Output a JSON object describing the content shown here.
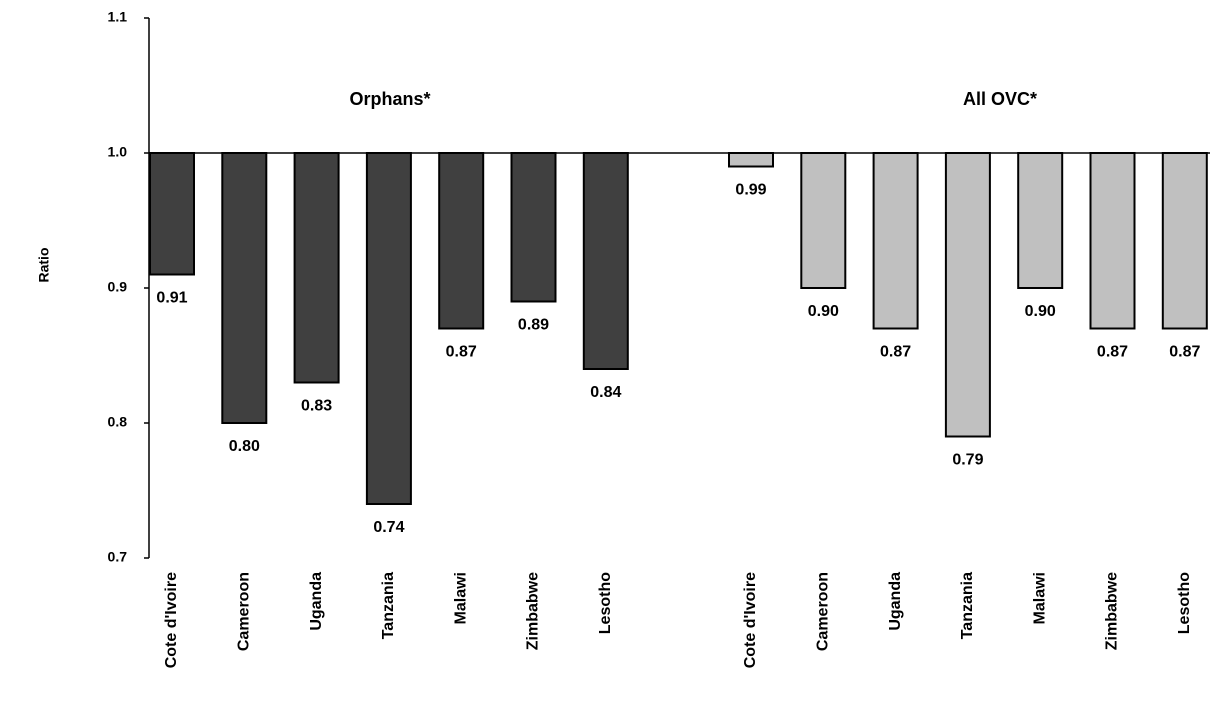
{
  "chart_data": {
    "type": "bar",
    "y_label": "Ratio",
    "categories": [
      "Cote d'Ivoire",
      "Cameroon",
      "Uganda",
      "Tanzania",
      "Malawi",
      "Zimbabwe",
      "Lesotho"
    ],
    "series": [
      {
        "name": "Orphans*",
        "color": "#404040",
        "values": [
          0.91,
          0.8,
          0.83,
          0.74,
          0.87,
          0.89,
          0.84
        ],
        "value_labels": [
          "0.91",
          "0.80",
          "0.83",
          "0.74",
          "0.87",
          "0.89",
          "0.84"
        ]
      },
      {
        "name": "All OVC*",
        "color": "#c0c0c0",
        "values": [
          0.99,
          0.9,
          0.87,
          0.79,
          0.9,
          0.87,
          0.87
        ],
        "value_labels": [
          "0.99",
          "0.90",
          "0.87",
          "0.79",
          "0.90",
          "0.87",
          "0.87"
        ]
      }
    ],
    "baseline": 1,
    "ylim": [
      0.7,
      1.1
    ],
    "yticks": [
      0.7,
      0.8,
      0.9,
      {
        "value": 1,
        "label": "1.0"
      },
      1.1
    ]
  }
}
